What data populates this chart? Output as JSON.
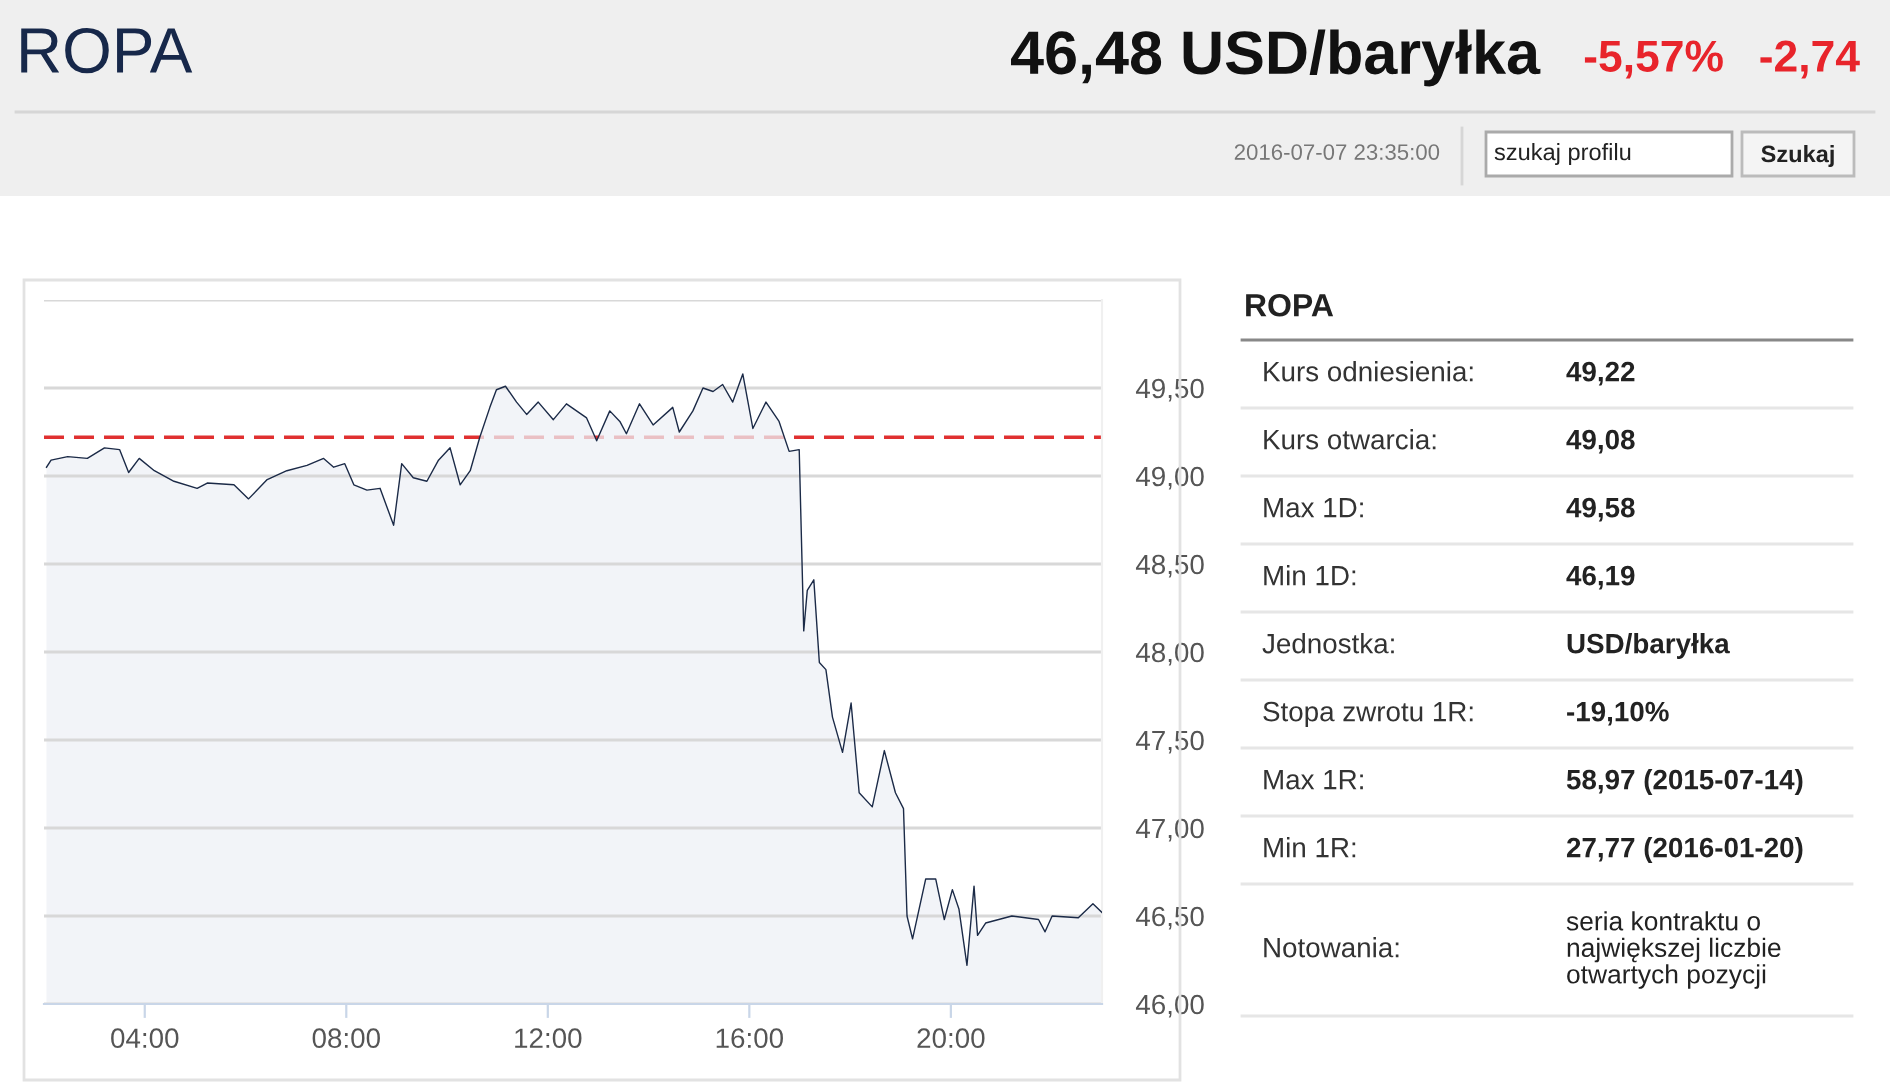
{
  "chart_data": [
    {
      "type": "area",
      "x": [
        2.05,
        2.14,
        2.47,
        2.86,
        3.2,
        3.5,
        3.68,
        3.89,
        4.19,
        4.58,
        5.04,
        5.24,
        5.77,
        6.06,
        6.43,
        6.82,
        7.22,
        7.55,
        7.75,
        7.97,
        8.15,
        8.41,
        8.67,
        8.94,
        9.1,
        9.33,
        9.6,
        9.83,
        10.06,
        10.26,
        10.46,
        10.65,
        10.85,
        10.98,
        11.16,
        11.38,
        11.58,
        11.81,
        12.11,
        12.37,
        12.77,
        12.97,
        13.23,
        13.43,
        13.56,
        13.82,
        14.09,
        14.48,
        14.61,
        14.88,
        15.08,
        15.28,
        15.47,
        15.67,
        15.87,
        16.07,
        16.33,
        16.59,
        16.79,
        16.99,
        17.08,
        17.15,
        17.28,
        17.39,
        17.52,
        17.65,
        17.85,
        18.02,
        18.18,
        18.44,
        18.68,
        18.9,
        19.06,
        19.13,
        19.24,
        19.5,
        19.7,
        19.87,
        20.03,
        20.16,
        20.32,
        20.46,
        20.53,
        20.69,
        21.21,
        21.74,
        21.87,
        22.01,
        22.53,
        22.82,
        23.0
      ],
      "series": [
        {
          "color": "#1b2a47",
          "values": [
            49.05,
            49.09,
            49.11,
            49.1,
            49.16,
            49.15,
            49.02,
            49.1,
            49.03,
            48.97,
            48.93,
            48.96,
            48.95,
            48.87,
            48.98,
            49.03,
            49.06,
            49.1,
            49.05,
            49.07,
            48.95,
            48.92,
            48.93,
            48.72,
            49.07,
            48.99,
            48.97,
            49.09,
            49.16,
            48.95,
            49.03,
            49.22,
            49.39,
            49.49,
            49.51,
            49.42,
            49.35,
            49.42,
            49.32,
            49.41,
            49.33,
            49.2,
            49.37,
            49.31,
            49.24,
            49.41,
            49.29,
            49.39,
            49.25,
            49.37,
            49.5,
            49.48,
            49.52,
            49.42,
            49.58,
            49.27,
            49.42,
            49.31,
            49.14,
            49.15,
            48.12,
            48.35,
            48.41,
            47.94,
            47.9,
            47.63,
            47.43,
            47.71,
            47.2,
            47.12,
            47.44,
            47.2,
            47.11,
            46.5,
            46.37,
            46.71,
            46.71,
            46.48,
            46.65,
            46.54,
            46.22,
            46.67,
            46.39,
            46.46,
            46.5,
            46.48,
            46.41,
            46.5,
            46.49,
            46.57,
            46.52
          ]
        }
      ],
      "xlim": [
        2,
        23
      ],
      "xticks": [
        {
          "value": 4,
          "label": "04:00"
        },
        {
          "value": 8,
          "label": "08:00"
        },
        {
          "value": 12,
          "label": "12:00"
        },
        {
          "value": 16,
          "label": "16:00"
        },
        {
          "value": 20,
          "label": "20:00"
        }
      ],
      "ylim": [
        46,
        50
      ],
      "yticks": [
        {
          "value": 46,
          "label": "46,00"
        },
        {
          "value": 46.5,
          "label": "46,50"
        },
        {
          "value": 47,
          "label": "47,00"
        },
        {
          "value": 47.5,
          "label": "47,50"
        },
        {
          "value": 48,
          "label": "48,00"
        },
        {
          "value": 48.5,
          "label": "48,50"
        },
        {
          "value": 49,
          "label": "49,00"
        },
        {
          "value": 49.5,
          "label": "49,50"
        },
        {
          "value": 50,
          "label": null
        }
      ],
      "grid": "y",
      "ref_lines": [
        {
          "axis": "y",
          "value": 49.22,
          "color": "#e03030",
          "line_style": "dashed"
        }
      ]
    },
    {
      "type": "other",
      "title": "ROPA",
      "annotations": [
        "46,48 USD/baryłka",
        "-5,57%",
        "-2,74",
        "2016-07-07 23:35:00",
        "szukaj profilu",
        "Szukaj"
      ]
    },
    {
      "type": "other",
      "title": "ROPA",
      "annotations": [
        "Kurs odniesienia:",
        "49,22",
        "Kurs otwarcia:",
        "49,08",
        "Max 1D:",
        "49,58",
        "Min 1D:",
        "46,19",
        "Jednostka:",
        "USD/baryłka",
        "Stopa zwrotu 1R:",
        "-19,10%",
        "Max 1R:",
        "58,97 (2015-07-14)",
        "Min 1R:",
        "27,77 (2016-01-20)",
        "Notowania:",
        "seria kontraktu o\nnajwiększej liczbie\notwartych pozycji"
      ]
    }
  ]
}
